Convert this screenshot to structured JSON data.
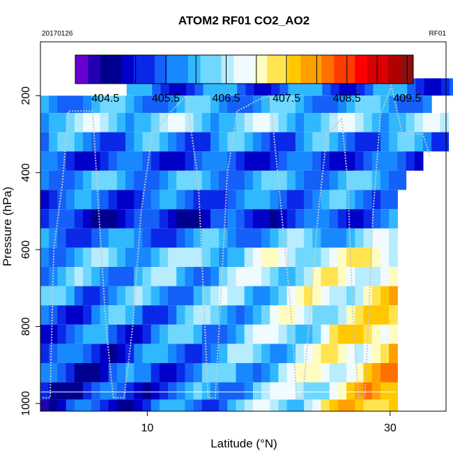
{
  "chart_data": {
    "type": "heatmap",
    "title": "ATOM2 RF01 CO2_AO2",
    "date": "20170126",
    "flight": "RF01",
    "xlabel": "Latitude (°N)",
    "ylabel": "Pressure (hPa)",
    "xlim": [
      1.2,
      34.6
    ],
    "ylim": [
      1020,
      60
    ],
    "y_reversed": true,
    "x_ticks": [
      "10",
      "30"
    ],
    "x_tick_values": [
      10,
      30
    ],
    "y_ticks": [
      "200",
      "400",
      "600",
      "800",
      "1000"
    ],
    "y_tick_values": [
      200,
      400,
      600,
      800,
      1000
    ],
    "colorbar": {
      "min": 404.0,
      "max": 409.6,
      "ticks": [
        "404.5",
        "405.5",
        "406.5",
        "407.5",
        "408.5",
        "409.5"
      ],
      "tick_values": [
        404.5,
        405.5,
        406.5,
        407.5,
        408.5,
        409.5
      ],
      "colors": [
        "#6a00d0",
        "#2400b0",
        "#000090",
        "#0000c8",
        "#0a28e8",
        "#1460f8",
        "#1888ff",
        "#30b8ff",
        "#70d8ff",
        "#b8ecff",
        "#f0fbff",
        "#fffcc0",
        "#ffe450",
        "#ffc800",
        "#ffa000",
        "#ff7000",
        "#ff3c00",
        "#ff0000",
        "#d80000",
        "#b00000",
        "#8a1010"
      ]
    },
    "layers": [
      {
        "p": 180,
        "x0": 8.3,
        "x1": 36.6,
        "base": 405.5,
        "amp": 0.6,
        "dx": 0.7
      },
      {
        "p": 220,
        "x0": 1.2,
        "x1": 32.8,
        "base": 405.8,
        "amp": 0.5,
        "dx": 0.7
      },
      {
        "p": 270,
        "x0": 1.2,
        "x1": 34.6,
        "base": 406.3,
        "amp": 0.5,
        "dx": 0.7
      },
      {
        "p": 320,
        "x0": 1.2,
        "x1": 34.6,
        "base": 405.6,
        "amp": 0.6,
        "dx": 0.7
      },
      {
        "p": 370,
        "x0": 1.2,
        "x1": 32.1,
        "base": 405.2,
        "amp": 0.5,
        "dx": 0.7
      },
      {
        "p": 420,
        "x0": 1.2,
        "x1": 31.3,
        "base": 405.8,
        "amp": 0.5,
        "dx": 0.7
      },
      {
        "p": 470,
        "x0": 1.2,
        "x1": 30.4,
        "base": 405.4,
        "amp": 0.5,
        "dx": 0.7
      },
      {
        "p": 520,
        "x0": 1.2,
        "x1": 30.4,
        "base": 404.9,
        "amp": 0.5,
        "dx": 0.7
      },
      {
        "p": 570,
        "x0": 1.2,
        "x1": 30.4,
        "base": 405.5,
        "amp": 0.5,
        "dx": 0.7
      },
      {
        "p": 620,
        "x0": 1.2,
        "x1": 30.4,
        "base": 406.0,
        "amp": 0.5,
        "dx": 0.7
      },
      {
        "p": 670,
        "x0": 1.2,
        "x1": 30.4,
        "base": 405.8,
        "amp": 0.6,
        "dx": 0.7
      },
      {
        "p": 720,
        "x0": 1.2,
        "x1": 30.4,
        "base": 405.7,
        "amp": 0.6,
        "dx": 0.7
      },
      {
        "p": 770,
        "x0": 1.2,
        "x1": 30.4,
        "base": 405.5,
        "amp": 0.6,
        "dx": 0.7
      },
      {
        "p": 820,
        "x0": 1.2,
        "x1": 30.4,
        "base": 405.4,
        "amp": 0.6,
        "dx": 0.7
      },
      {
        "p": 870,
        "x0": 1.2,
        "x1": 30.4,
        "base": 405.2,
        "amp": 0.6,
        "dx": 0.7
      },
      {
        "p": 920,
        "x0": 1.2,
        "x1": 30.4,
        "base": 405.1,
        "amp": 0.6,
        "dx": 0.7
      },
      {
        "p": 970,
        "x0": 1.2,
        "x1": 30.4,
        "base": 405.0,
        "amp": 0.6,
        "dx": 0.7
      },
      {
        "p": 1010,
        "x0": 1.2,
        "x1": 30.4,
        "base": 405.0,
        "amp": 0.6,
        "dx": 0.7
      }
    ],
    "flight_track": [
      [
        1.4,
        985
      ],
      [
        2.0,
        985
      ],
      [
        2.3,
        600
      ],
      [
        3.0,
        430
      ],
      [
        3.5,
        240
      ],
      [
        5.5,
        240
      ],
      [
        6.0,
        500
      ],
      [
        6.6,
        800
      ],
      [
        7.2,
        985
      ],
      [
        8.1,
        985
      ],
      [
        8.8,
        800
      ],
      [
        9.5,
        500
      ],
      [
        10.4,
        300
      ],
      [
        12.0,
        240
      ],
      [
        13.2,
        200
      ],
      [
        14.2,
        420
      ],
      [
        14.6,
        700
      ],
      [
        15.0,
        985
      ],
      [
        15.6,
        985
      ],
      [
        16.1,
        700
      ],
      [
        16.6,
        400
      ],
      [
        17.4,
        240
      ],
      [
        19.2,
        210
      ],
      [
        20.1,
        200
      ],
      [
        20.8,
        420
      ],
      [
        21.8,
        750
      ],
      [
        22.3,
        985
      ],
      [
        22.8,
        985
      ],
      [
        23.3,
        800
      ],
      [
        24.1,
        500
      ],
      [
        24.8,
        300
      ],
      [
        26.0,
        260
      ],
      [
        26.5,
        420
      ],
      [
        26.9,
        750
      ],
      [
        27.4,
        985
      ],
      [
        27.9,
        985
      ],
      [
        28.2,
        800
      ],
      [
        28.6,
        500
      ],
      [
        29.2,
        250
      ],
      [
        30.1,
        175
      ],
      [
        31.0,
        300
      ],
      [
        32.7,
        300
      ],
      [
        33.3,
        360
      ]
    ]
  }
}
